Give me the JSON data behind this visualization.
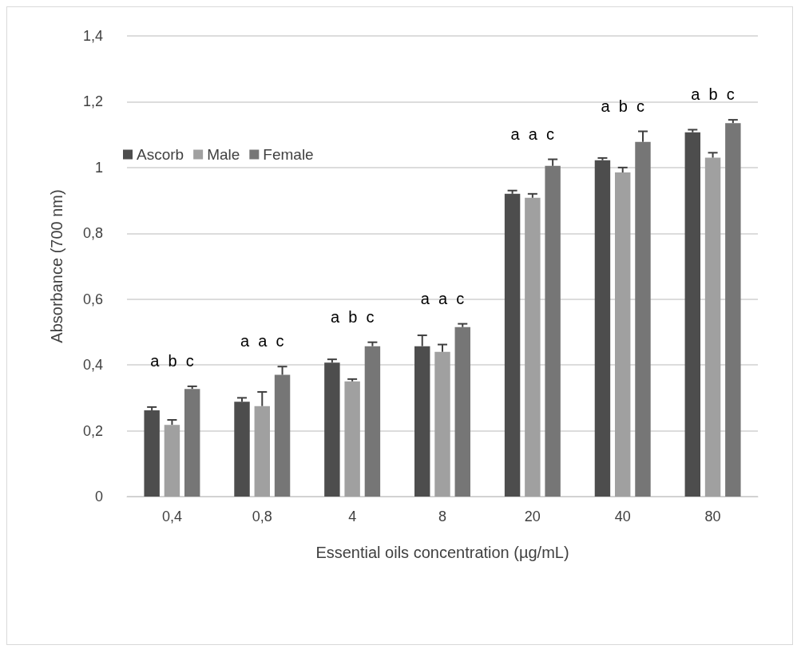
{
  "chart_data": {
    "type": "bar",
    "xlabel": "Essential oils concentration (µg/mL)",
    "ylabel": "Absorbance (700 nm)",
    "categories": [
      "0,4",
      "0,8",
      "4",
      "8",
      "20",
      "40",
      "80"
    ],
    "series": [
      {
        "name": "Ascorb",
        "color": "#4d4d4d",
        "values": [
          0.262,
          0.288,
          0.407,
          0.457,
          0.92,
          1.022,
          1.107
        ],
        "errors": [
          0.01,
          0.012,
          0.01,
          0.033,
          0.01,
          0.007,
          0.008
        ]
      },
      {
        "name": "Male",
        "color": "#a0a0a0",
        "values": [
          0.218,
          0.275,
          0.35,
          0.44,
          0.908,
          0.985,
          1.03
        ],
        "errors": [
          0.015,
          0.043,
          0.007,
          0.022,
          0.012,
          0.015,
          0.015
        ]
      },
      {
        "name": "Female",
        "color": "#767676",
        "values": [
          0.327,
          0.37,
          0.457,
          0.515,
          1.005,
          1.078,
          1.135
        ],
        "errors": [
          0.008,
          0.025,
          0.012,
          0.01,
          0.02,
          0.032,
          0.01
        ]
      }
    ],
    "ylim": [
      0,
      1.4
    ],
    "yticks": [
      0,
      {
        "value": 0.2,
        "label": "0,2"
      },
      {
        "value": 0.4,
        "label": "0,4"
      },
      {
        "value": 0.6,
        "label": "0,6"
      },
      {
        "value": 0.8,
        "label": "0,8"
      },
      1,
      {
        "value": 1.2,
        "label": "1,2"
      },
      {
        "value": 1.4,
        "label": "1,4"
      }
    ],
    "grid": "y",
    "legend": "top left",
    "annotations": [
      "a b c",
      "a a c",
      "a b c",
      "a a c",
      "a a c",
      "a b c",
      "a b c"
    ]
  }
}
